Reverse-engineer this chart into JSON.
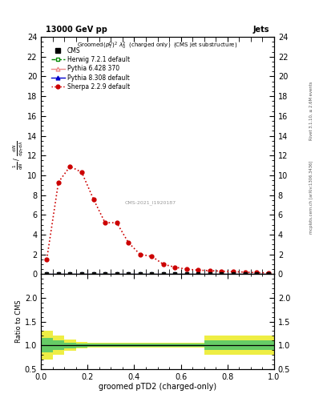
{
  "title_top": "13000 GeV pp",
  "title_right": "Jets",
  "plot_title": "Groomed $(p_T^D)^2\\lambda_0^2$  (charged only)  (CMS jet substructure)",
  "watermark": "CMS-2021_I1920187",
  "rivet_label": "Rivet 3.1.10, ≥ 2.6M events",
  "arxiv_label": "mcplots.cern.ch [arXiv:1306.3436]",
  "xlabel": "groomed pTD2 (charged-only)",
  "ylabel": "$\\frac{1}{\\mathrm{d}N}$ / $\\frac{\\mathrm{d}N}{\\mathrm{d}p_T\\mathrm{d}\\lambda}$",
  "ylabel_ratio": "Ratio to CMS",
  "ylim_main": [
    0,
    24
  ],
  "ylim_ratio": [
    0.5,
    2.5
  ],
  "yticks_main": [
    0,
    2,
    4,
    6,
    8,
    10,
    12,
    14,
    16,
    18,
    20,
    22,
    24
  ],
  "yticks_ratio": [
    0.5,
    1.0,
    1.5,
    2.0
  ],
  "xlim": [
    0.0,
    1.0
  ],
  "sherpa_x": [
    0.025,
    0.075,
    0.125,
    0.175,
    0.225,
    0.275,
    0.325,
    0.375,
    0.425,
    0.475,
    0.525,
    0.575,
    0.625,
    0.675,
    0.725,
    0.775,
    0.825,
    0.875,
    0.925,
    0.975
  ],
  "sherpa_y": [
    1.5,
    9.3,
    10.9,
    10.3,
    7.6,
    5.2,
    5.2,
    3.2,
    2.0,
    1.8,
    1.0,
    0.7,
    0.5,
    0.4,
    0.35,
    0.3,
    0.25,
    0.2,
    0.15,
    0.12
  ],
  "cms_x": [
    0.025,
    0.075,
    0.125,
    0.175,
    0.225,
    0.275,
    0.325,
    0.375,
    0.425,
    0.475,
    0.525,
    0.575,
    0.625,
    0.675,
    0.725,
    0.775,
    0.825,
    0.875,
    0.925,
    0.975
  ],
  "cms_y": [
    0.05,
    0.05,
    0.05,
    0.05,
    0.05,
    0.05,
    0.05,
    0.05,
    0.05,
    0.05,
    0.05,
    0.05,
    0.05,
    0.05,
    0.05,
    0.05,
    0.05,
    0.05,
    0.05,
    0.05
  ],
  "herwig_x": [
    0.025,
    0.075,
    0.125,
    0.175,
    0.225,
    0.275,
    0.325,
    0.375,
    0.425,
    0.475,
    0.525,
    0.575,
    0.625,
    0.675,
    0.725,
    0.775,
    0.825,
    0.875,
    0.925,
    0.975
  ],
  "herwig_y": [
    0.05,
    0.05,
    0.05,
    0.05,
    0.05,
    0.05,
    0.05,
    0.05,
    0.05,
    0.05,
    0.05,
    0.05,
    0.05,
    0.05,
    0.05,
    0.05,
    0.05,
    0.05,
    0.05,
    0.05
  ],
  "pythia6_x": [
    0.025,
    0.075,
    0.125,
    0.175,
    0.225,
    0.275,
    0.325,
    0.375,
    0.425,
    0.475,
    0.525,
    0.575,
    0.625,
    0.675,
    0.725,
    0.775,
    0.825,
    0.875,
    0.925,
    0.975
  ],
  "pythia6_y": [
    0.05,
    0.05,
    0.05,
    0.05,
    0.05,
    0.05,
    0.05,
    0.05,
    0.05,
    0.05,
    0.05,
    0.05,
    0.05,
    0.05,
    0.05,
    0.05,
    0.05,
    0.05,
    0.05,
    0.05
  ],
  "pythia8_x": [
    0.025,
    0.075,
    0.125,
    0.175,
    0.225,
    0.275,
    0.325,
    0.375,
    0.425,
    0.475,
    0.525,
    0.575,
    0.625,
    0.675,
    0.725,
    0.775,
    0.825,
    0.875,
    0.925,
    0.975
  ],
  "pythia8_y": [
    0.05,
    0.05,
    0.05,
    0.05,
    0.05,
    0.05,
    0.05,
    0.05,
    0.05,
    0.05,
    0.05,
    0.05,
    0.05,
    0.05,
    0.05,
    0.05,
    0.05,
    0.05,
    0.05,
    0.05
  ],
  "ratio_x_edges": [
    0.0,
    0.05,
    0.1,
    0.15,
    0.2,
    0.25,
    0.3,
    0.35,
    0.4,
    0.45,
    0.5,
    0.55,
    0.6,
    0.65,
    0.7,
    0.75,
    0.8,
    0.85,
    0.9,
    0.95,
    1.0
  ],
  "ratio_inner_low": [
    0.85,
    0.9,
    0.94,
    0.96,
    0.97,
    0.97,
    0.97,
    0.97,
    0.97,
    0.97,
    0.97,
    0.97,
    0.97,
    0.97,
    0.9,
    0.9,
    0.9,
    0.9,
    0.9,
    0.9
  ],
  "ratio_inner_high": [
    1.15,
    1.1,
    1.06,
    1.04,
    1.03,
    1.03,
    1.03,
    1.03,
    1.03,
    1.03,
    1.03,
    1.03,
    1.03,
    1.03,
    1.1,
    1.1,
    1.1,
    1.1,
    1.1,
    1.1
  ],
  "ratio_outer_low": [
    0.7,
    0.8,
    0.88,
    0.93,
    0.95,
    0.95,
    0.95,
    0.95,
    0.95,
    0.95,
    0.95,
    0.95,
    0.95,
    0.95,
    0.8,
    0.8,
    0.8,
    0.8,
    0.8,
    0.8
  ],
  "ratio_outer_high": [
    1.3,
    1.2,
    1.12,
    1.07,
    1.05,
    1.05,
    1.05,
    1.05,
    1.05,
    1.05,
    1.05,
    1.05,
    1.05,
    1.05,
    1.2,
    1.2,
    1.2,
    1.2,
    1.2,
    1.2
  ],
  "color_cms": "#000000",
  "color_herwig": "#008800",
  "color_pythia6": "#ee8888",
  "color_pythia8": "#0000cc",
  "color_sherpa": "#cc0000",
  "color_inner_band": "#66cc66",
  "color_outer_band": "#eeee44",
  "bg_color": "#ffffff"
}
